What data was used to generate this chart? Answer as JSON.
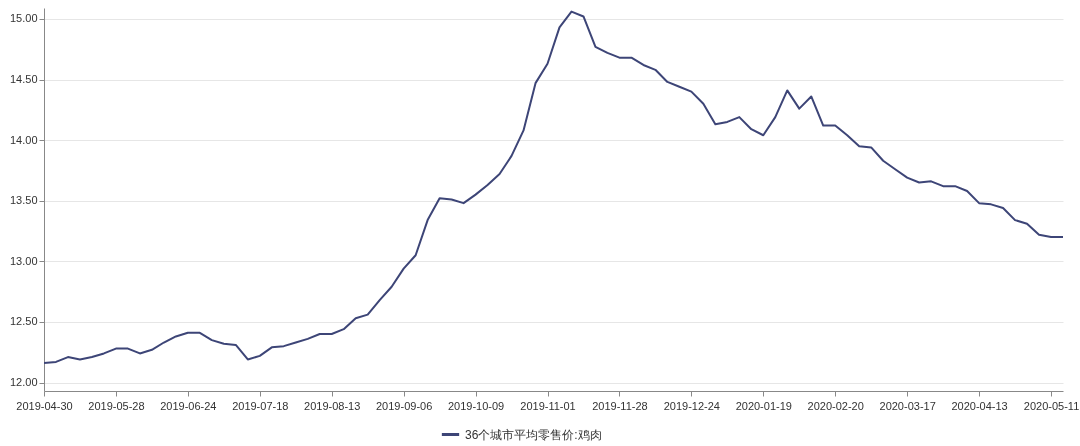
{
  "chart_data": {
    "type": "line",
    "categories": [
      "2019-04-30",
      null,
      null,
      null,
      null,
      null,
      "2019-05-28",
      null,
      null,
      null,
      null,
      null,
      "2019-06-24",
      null,
      null,
      null,
      null,
      null,
      "2019-07-18",
      null,
      null,
      null,
      null,
      null,
      "2019-08-13",
      null,
      null,
      null,
      null,
      null,
      "2019-09-06",
      null,
      null,
      null,
      null,
      null,
      "2019-10-09",
      null,
      null,
      null,
      null,
      null,
      "2019-11-01",
      null,
      null,
      null,
      null,
      null,
      "2019-11-28",
      null,
      null,
      null,
      null,
      null,
      "2019-12-24",
      null,
      null,
      null,
      null,
      null,
      "2020-01-19",
      null,
      null,
      null,
      null,
      null,
      "2020-02-20",
      null,
      null,
      null,
      null,
      null,
      "2020-03-17",
      null,
      null,
      null,
      null,
      null,
      "2020-04-13",
      null,
      null,
      null,
      null,
      null,
      "2020-05-11",
      null
    ],
    "series": [
      {
        "name": "36个城市平均零售价:鸡肉",
        "color": "#3d4577",
        "values": [
          12.16,
          12.17,
          12.21,
          12.19,
          12.21,
          12.24,
          12.28,
          12.28,
          12.24,
          12.27,
          12.33,
          12.38,
          12.41,
          12.41,
          12.35,
          12.32,
          12.31,
          12.19,
          12.22,
          12.29,
          12.3,
          12.33,
          12.36,
          12.4,
          12.4,
          12.44,
          12.53,
          12.56,
          12.68,
          12.79,
          12.94,
          13.05,
          13.34,
          13.52,
          13.51,
          13.48,
          13.55,
          13.63,
          13.72,
          13.87,
          14.08,
          14.47,
          14.63,
          14.93,
          15.06,
          15.02,
          14.77,
          14.72,
          14.68,
          14.68,
          14.62,
          14.58,
          14.48,
          14.44,
          14.4,
          14.3,
          14.13,
          14.15,
          14.19,
          14.09,
          14.04,
          14.19,
          14.41,
          14.26,
          14.36,
          14.12,
          14.12,
          14.04,
          13.95,
          13.94,
          13.83,
          13.76,
          13.69,
          13.65,
          13.66,
          13.62,
          13.62,
          13.58,
          13.48,
          13.47,
          13.44,
          13.34,
          13.31,
          13.22,
          13.2,
          13.2
        ]
      }
    ],
    "ylim": [
      11.93,
      15.09
    ],
    "yticks": [
      {
        "value": 12,
        "label": "12.00"
      },
      {
        "value": 12.5,
        "label": "12.50"
      },
      {
        "value": 13,
        "label": "13.00"
      },
      {
        "value": 13.5,
        "label": "13.50"
      },
      {
        "value": 14,
        "label": "14.00"
      },
      {
        "value": 14.5,
        "label": "14.50"
      },
      {
        "value": 15,
        "label": "15.00"
      }
    ],
    "grid": "y",
    "legend": "bottom"
  }
}
